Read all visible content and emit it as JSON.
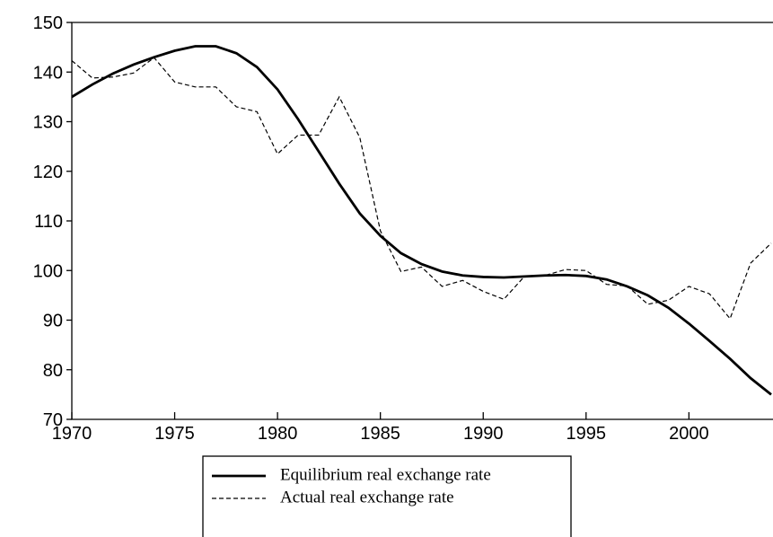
{
  "chart_data": {
    "type": "line",
    "x": [
      1970,
      1971,
      1972,
      1973,
      1974,
      1975,
      1976,
      1977,
      1978,
      1979,
      1980,
      1981,
      1982,
      1983,
      1984,
      1985,
      1986,
      1987,
      1988,
      1989,
      1990,
      1991,
      1992,
      1993,
      1994,
      1995,
      1996,
      1997,
      1998,
      1999,
      2000,
      2001,
      2002,
      2003,
      2004
    ],
    "series": [
      {
        "name": "Equilibrium real exchange rate",
        "color": "#000000",
        "dash": "solid",
        "values": [
          135,
          137.5,
          139.7,
          141.5,
          143,
          144.3,
          145.2,
          145.2,
          143.8,
          141,
          136.5,
          130.5,
          124,
          117.5,
          111.5,
          107,
          103.5,
          101.3,
          99.8,
          99,
          98.7,
          98.6,
          98.8,
          99,
          99.1,
          98.9,
          98.2,
          96.8,
          95,
          92.5,
          89.3,
          85.8,
          82.2,
          78.3,
          75
        ]
      },
      {
        "name": "Actual real exchange rate",
        "color": "#000000",
        "dash": "dashed",
        "values": [
          142.3,
          138.8,
          139,
          139.8,
          142.9,
          138,
          137,
          137,
          133,
          132,
          123.5,
          127.3,
          127.3,
          135,
          126.8,
          108,
          99.8,
          100.7,
          96.8,
          98,
          95.8,
          94.2,
          98.8,
          99,
          100.2,
          100,
          97.2,
          96.9,
          93.2,
          94,
          96.8,
          95.3,
          90.3,
          101.5,
          105.5
        ]
      }
    ],
    "xlim": [
      1970,
      2004
    ],
    "xticks": [
      1970,
      1975,
      1980,
      1985,
      1990,
      1995,
      2000
    ],
    "ylim": [
      70,
      150
    ],
    "yticks": [
      70,
      80,
      90,
      100,
      110,
      120,
      130,
      140,
      150
    ]
  }
}
